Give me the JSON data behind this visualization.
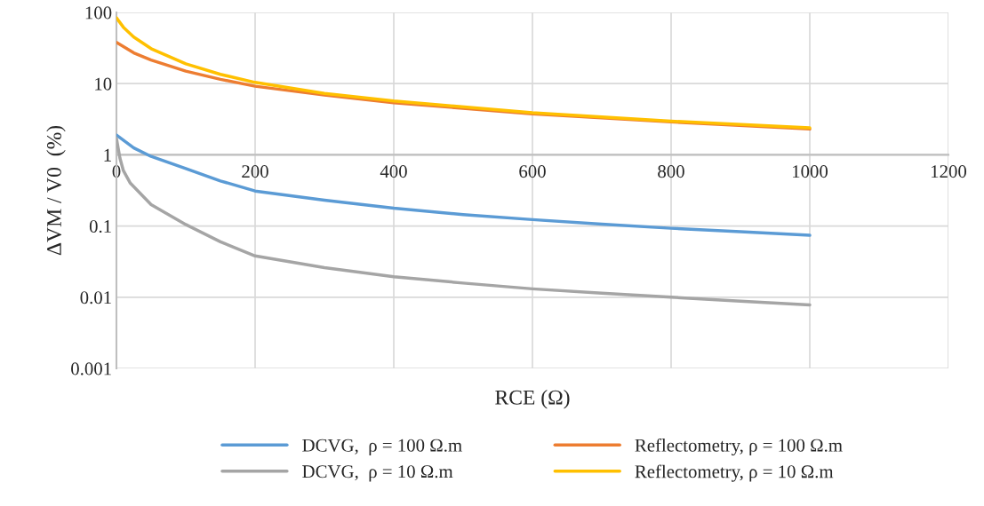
{
  "chart_data": {
    "type": "line",
    "xlabel": "RCE (Ω)",
    "ylabel": "ΔVM / V0  (%)",
    "log": "y",
    "xlim": [
      0,
      1200
    ],
    "xticks": [
      0,
      200,
      400,
      600,
      800,
      1000,
      1200
    ],
    "ylim": [
      0.001,
      100
    ],
    "yticks": [
      0.001,
      0.01,
      0.1,
      1,
      10,
      100
    ],
    "grid": true,
    "legend": "bottom",
    "marker": "none",
    "line_style": "solid",
    "series": [
      {
        "name": "DCVG,  ρ = 100 Ω.m",
        "color": "#5b9bd5",
        "x": [
          0,
          25,
          50,
          100,
          150,
          200,
          300,
          400,
          500,
          600,
          700,
          800,
          900,
          1000
        ],
        "values": [
          1.9,
          1.25,
          0.95,
          0.64,
          0.43,
          0.31,
          0.23,
          0.178,
          0.145,
          0.123,
          0.106,
          0.093,
          0.083,
          0.074
        ]
      },
      {
        "name": "Reflectometry, ρ = 100 Ω.m",
        "color": "#ed7d31",
        "x": [
          0,
          25,
          50,
          100,
          150,
          200,
          300,
          400,
          600,
          800,
          1000
        ],
        "values": [
          38,
          27,
          21.5,
          15,
          11.5,
          9.2,
          6.9,
          5.4,
          3.75,
          2.9,
          2.3
        ]
      },
      {
        "name": "DCVG,  ρ = 10 Ω.m",
        "color": "#a5a5a5",
        "x": [
          0,
          5,
          10,
          20,
          50,
          100,
          150,
          200,
          300,
          400,
          500,
          600,
          700,
          800,
          900,
          1000
        ],
        "values": [
          1.7,
          0.9,
          0.6,
          0.4,
          0.2,
          0.105,
          0.06,
          0.038,
          0.026,
          0.0194,
          0.0158,
          0.0131,
          0.0114,
          0.01,
          0.0088,
          0.0078
        ]
      },
      {
        "name": "Reflectometry, ρ = 10 Ω.m",
        "color": "#ffc000",
        "x": [
          0,
          10,
          25,
          50,
          100,
          150,
          200,
          300,
          400,
          600,
          800,
          1000
        ],
        "values": [
          84,
          62,
          45,
          31,
          19,
          13.5,
          10.4,
          7.3,
          5.7,
          3.9,
          2.97,
          2.39
        ]
      }
    ]
  }
}
